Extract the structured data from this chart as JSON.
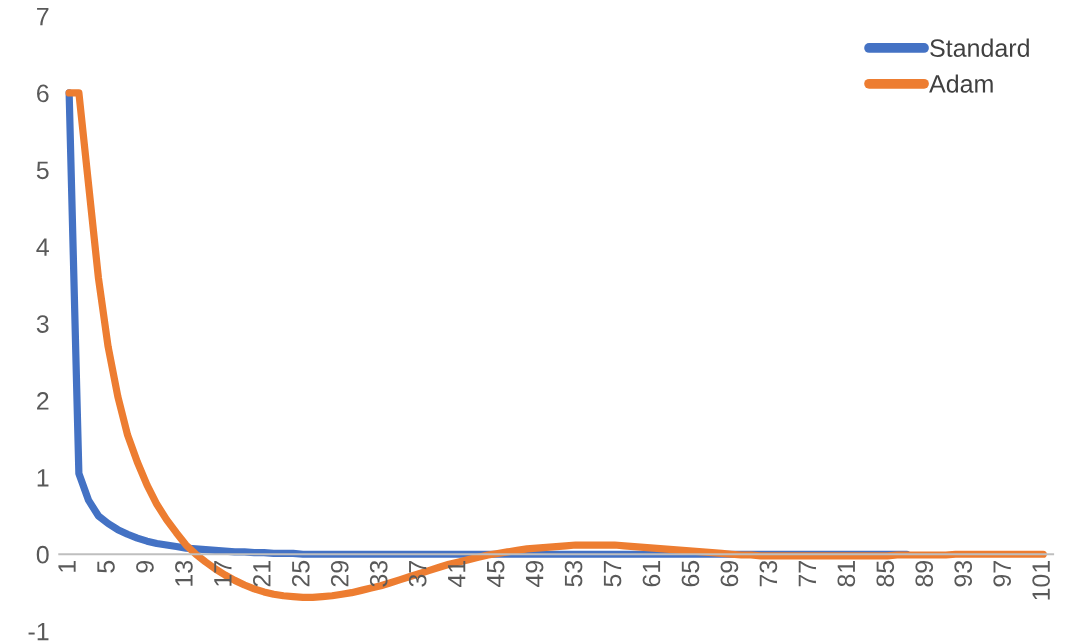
{
  "chart_data": {
    "type": "line",
    "categories": [
      "1",
      null,
      null,
      null,
      "5",
      null,
      null,
      null,
      "9",
      null,
      null,
      null,
      "13",
      null,
      null,
      null,
      "17",
      null,
      null,
      null,
      "21",
      null,
      null,
      null,
      "25",
      null,
      null,
      null,
      "29",
      null,
      null,
      null,
      "33",
      null,
      null,
      null,
      "37",
      null,
      null,
      null,
      "41",
      null,
      null,
      null,
      "45",
      null,
      null,
      null,
      "49",
      null,
      null,
      null,
      "53",
      null,
      null,
      null,
      "57",
      null,
      null,
      null,
      "61",
      null,
      null,
      null,
      "65",
      null,
      null,
      null,
      "69",
      null,
      null,
      null,
      "73",
      null,
      null,
      null,
      "77",
      null,
      null,
      null,
      "81",
      null,
      null,
      null,
      "85",
      null,
      null,
      null,
      "89",
      null,
      null,
      null,
      "93",
      null,
      null,
      null,
      "97",
      null,
      null,
      null,
      "101"
    ],
    "series": [
      {
        "name": "Standard",
        "color": "#4472c4",
        "values": [
          6,
          1.05,
          0.7,
          0.5,
          0.4,
          0.32,
          0.26,
          0.21,
          0.17,
          0.14,
          0.12,
          0.1,
          0.08,
          0.07,
          0.06,
          0.05,
          0.04,
          0.03,
          0.03,
          0.02,
          0.02,
          0.01,
          0.01,
          0.01,
          0,
          0,
          0,
          0,
          0,
          0,
          0,
          0,
          0,
          0,
          0,
          0,
          0,
          0,
          0,
          0,
          0,
          0,
          0,
          0,
          0,
          0,
          0,
          0,
          0,
          0,
          0,
          0,
          0,
          0,
          0,
          0,
          0,
          0,
          0,
          0,
          0,
          0,
          0,
          0,
          0,
          0,
          0,
          0,
          0,
          0,
          0,
          0,
          0,
          0,
          0,
          0,
          0,
          0,
          0,
          0,
          0,
          0,
          0,
          0,
          0,
          0,
          0,
          null,
          null,
          null,
          null,
          null,
          null,
          null,
          null,
          null,
          null,
          null,
          null,
          null,
          null
        ]
      },
      {
        "name": "Adam",
        "color": "#ed7d31",
        "values": [
          6,
          6,
          4.8,
          3.6,
          2.7,
          2.05,
          1.55,
          1.2,
          0.9,
          0.65,
          0.45,
          0.28,
          0.12,
          0,
          -0.1,
          -0.19,
          -0.27,
          -0.34,
          -0.4,
          -0.45,
          -0.49,
          -0.52,
          -0.54,
          -0.55,
          -0.56,
          -0.56,
          -0.55,
          -0.54,
          -0.52,
          -0.5,
          -0.47,
          -0.44,
          -0.41,
          -0.37,
          -0.33,
          -0.29,
          -0.25,
          -0.21,
          -0.17,
          -0.13,
          -0.1,
          -0.07,
          -0.04,
          -0.01,
          0.01,
          0.03,
          0.05,
          0.07,
          0.08,
          0.09,
          0.1,
          0.11,
          0.12,
          0.12,
          0.12,
          0.12,
          0.12,
          0.11,
          0.1,
          0.09,
          0.08,
          0.07,
          0.06,
          0.05,
          0.04,
          0.03,
          0.02,
          0.01,
          0,
          -0.01,
          -0.01,
          -0.02,
          -0.02,
          -0.02,
          -0.02,
          -0.02,
          -0.02,
          -0.02,
          -0.02,
          -0.02,
          -0.02,
          -0.02,
          -0.02,
          -0.02,
          -0.02,
          -0.01,
          -0.01,
          -0.01,
          -0.01,
          -0.01,
          -0.01,
          0,
          0,
          0,
          0,
          0,
          0,
          0,
          0,
          0,
          0
        ]
      }
    ],
    "ylim": [
      -1,
      7
    ],
    "yticks": [
      -1,
      0,
      1,
      2,
      3,
      4,
      5,
      6,
      7
    ],
    "legend": "top right",
    "grid": false,
    "marker": "none",
    "line_style": "solid"
  }
}
